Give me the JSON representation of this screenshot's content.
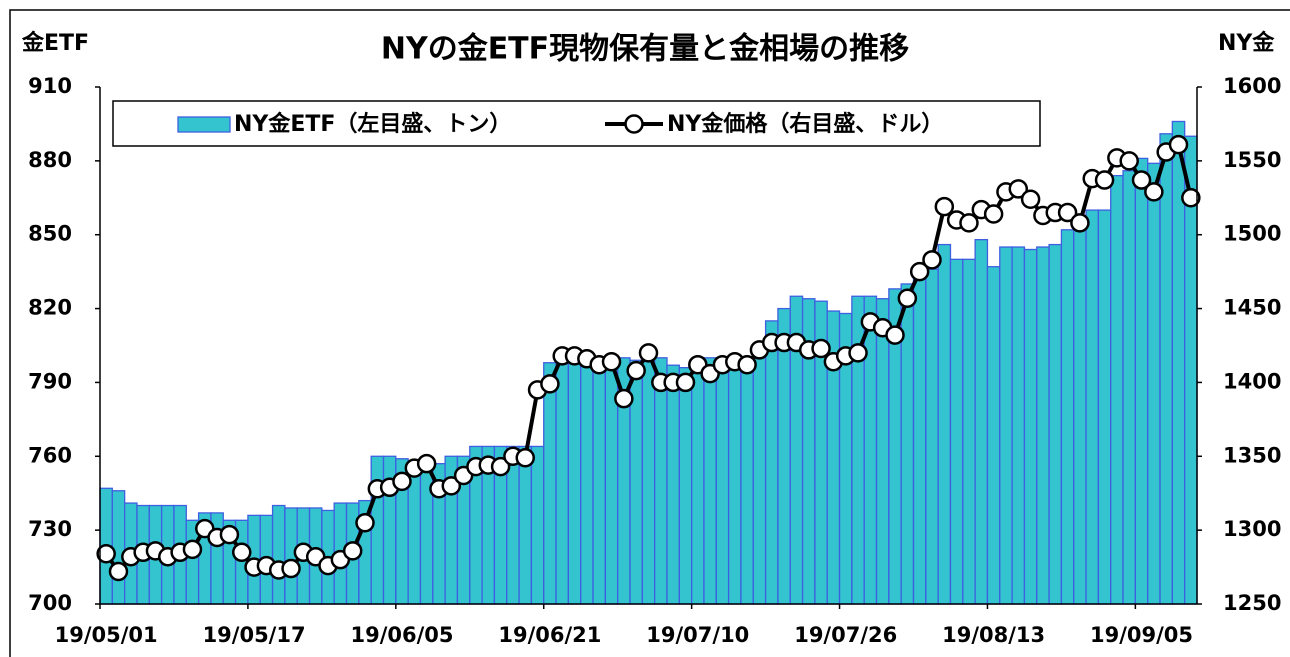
{
  "chart_data": {
    "type": "bar",
    "title": "NYの金ETF現物保有量と金相場の推移",
    "y_label": "金ETF",
    "y2_label": "NY金",
    "categories": [
      "19/05/01",
      null,
      null,
      null,
      null,
      null,
      null,
      null,
      null,
      null,
      null,
      null,
      "19/05/17",
      null,
      null,
      null,
      null,
      null,
      null,
      null,
      null,
      null,
      null,
      null,
      "19/06/05",
      null,
      null,
      null,
      null,
      null,
      null,
      null,
      null,
      null,
      null,
      null,
      "19/06/21",
      null,
      null,
      null,
      null,
      null,
      null,
      null,
      null,
      null,
      null,
      null,
      "19/07/10",
      null,
      null,
      null,
      null,
      null,
      null,
      null,
      null,
      null,
      null,
      null,
      "19/07/26",
      null,
      null,
      null,
      null,
      null,
      null,
      null,
      null,
      null,
      null,
      null,
      "19/08/13",
      null,
      null,
      null,
      null,
      null,
      null,
      null,
      null,
      null,
      null,
      null,
      "19/09/05",
      null,
      null,
      null,
      null
    ],
    "series": [
      {
        "name": "NY金ETF（左目盛、トン）",
        "type": "bar",
        "color": "#33c4d0",
        "edge_color": "#3e5fe0",
        "values": [
          747,
          746,
          741,
          740,
          740,
          740,
          740,
          734,
          737,
          737,
          734,
          734,
          736,
          736,
          740,
          739,
          739,
          739,
          738,
          741,
          741,
          742,
          760,
          760,
          759,
          758,
          757,
          757,
          760,
          760,
          764,
          764,
          764,
          764,
          764,
          764,
          798,
          800,
          801,
          801,
          800,
          800,
          800,
          799,
          800,
          800,
          797,
          796,
          795,
          800,
          800,
          800,
          800,
          801,
          815,
          820,
          825,
          824,
          823,
          819,
          818,
          825,
          825,
          824,
          828,
          830,
          832,
          836,
          846,
          840,
          840,
          848,
          837,
          845,
          845,
          844,
          845,
          846,
          852,
          856,
          860,
          860,
          874,
          876,
          881,
          879,
          891,
          896,
          890
        ]
      },
      {
        "name": "NY金価格（右目盛、ドル）",
        "type": "line",
        "axis": "y2",
        "color": "#000000",
        "values": [
          1284,
          1272,
          1282,
          1285,
          1286,
          1282,
          1285,
          1287,
          1301,
          1295,
          1297,
          1285,
          1275,
          1276,
          1273,
          1274,
          1285,
          1282,
          1276,
          1280,
          1286,
          1305,
          1328,
          1329,
          1333,
          1342,
          1345,
          1328,
          1330,
          1337,
          1343,
          1344,
          1343,
          1350,
          1349,
          1395,
          1399,
          1418,
          1418,
          1416,
          1412,
          1414,
          1389,
          1408,
          1420,
          1400,
          1400,
          1400,
          1412,
          1406,
          1412,
          1414,
          1412,
          1422,
          1427,
          1427,
          1427,
          1422,
          1423,
          1414,
          1418,
          1420,
          1441,
          1437,
          1432,
          1457,
          1475,
          1483,
          1519,
          1510,
          1508,
          1517,
          1514,
          1529,
          1531,
          1524,
          1513,
          1515,
          1515,
          1508,
          1538,
          1537,
          1552,
          1550,
          1537,
          1529,
          1556,
          1561,
          1525
        ]
      }
    ],
    "ylim": [
      700,
      910
    ],
    "yticks": [
      700,
      730,
      760,
      790,
      820,
      850,
      880,
      910
    ],
    "y2lim": [
      1250,
      1600
    ],
    "y2ticks": [
      1250,
      1300,
      1350,
      1400,
      1450,
      1500,
      1550,
      1600
    ],
    "legend": "top"
  }
}
